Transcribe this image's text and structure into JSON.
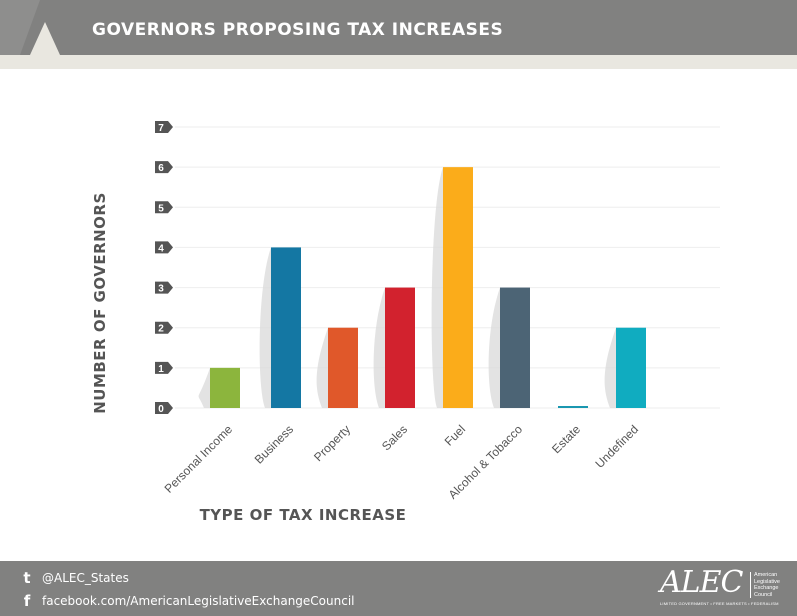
{
  "header": {
    "title": "GOVERNORS PROPOSING TAX INCREASES"
  },
  "footer": {
    "twitter": "@ALEC_States",
    "facebook": "facebook.com/AmericanLegislativeExchangeCouncil",
    "twitter_icon": "twitter-icon",
    "facebook_icon": "facebook-icon"
  },
  "logo": {
    "word": "ALEC",
    "side": "American Legislative Exchange Council",
    "tagline": "LIMITED GOVERNMENT • FREE MARKETS • FEDERALISM"
  },
  "chart_data": {
    "type": "bar",
    "title": "",
    "xlabel": "TYPE OF TAX INCREASE",
    "ylabel": "NUMBER OF GOVERNORS",
    "categories": [
      "Personal Income",
      "Business",
      "Property",
      "Sales",
      "Fuel",
      "Alcohol & Tobacco",
      "Estate",
      "Undefined"
    ],
    "values": [
      1,
      4,
      2,
      3,
      6,
      3,
      0,
      2
    ],
    "colors": [
      "#8cb53d",
      "#1477a3",
      "#e0582a",
      "#d2222e",
      "#fbac1a",
      "#4c6475",
      "#1a97b0",
      "#10acc0"
    ],
    "ylim": [
      0,
      7
    ],
    "yticks": [
      0,
      1,
      2,
      3,
      4,
      5,
      6,
      7
    ],
    "grid": true,
    "legend": "none"
  }
}
